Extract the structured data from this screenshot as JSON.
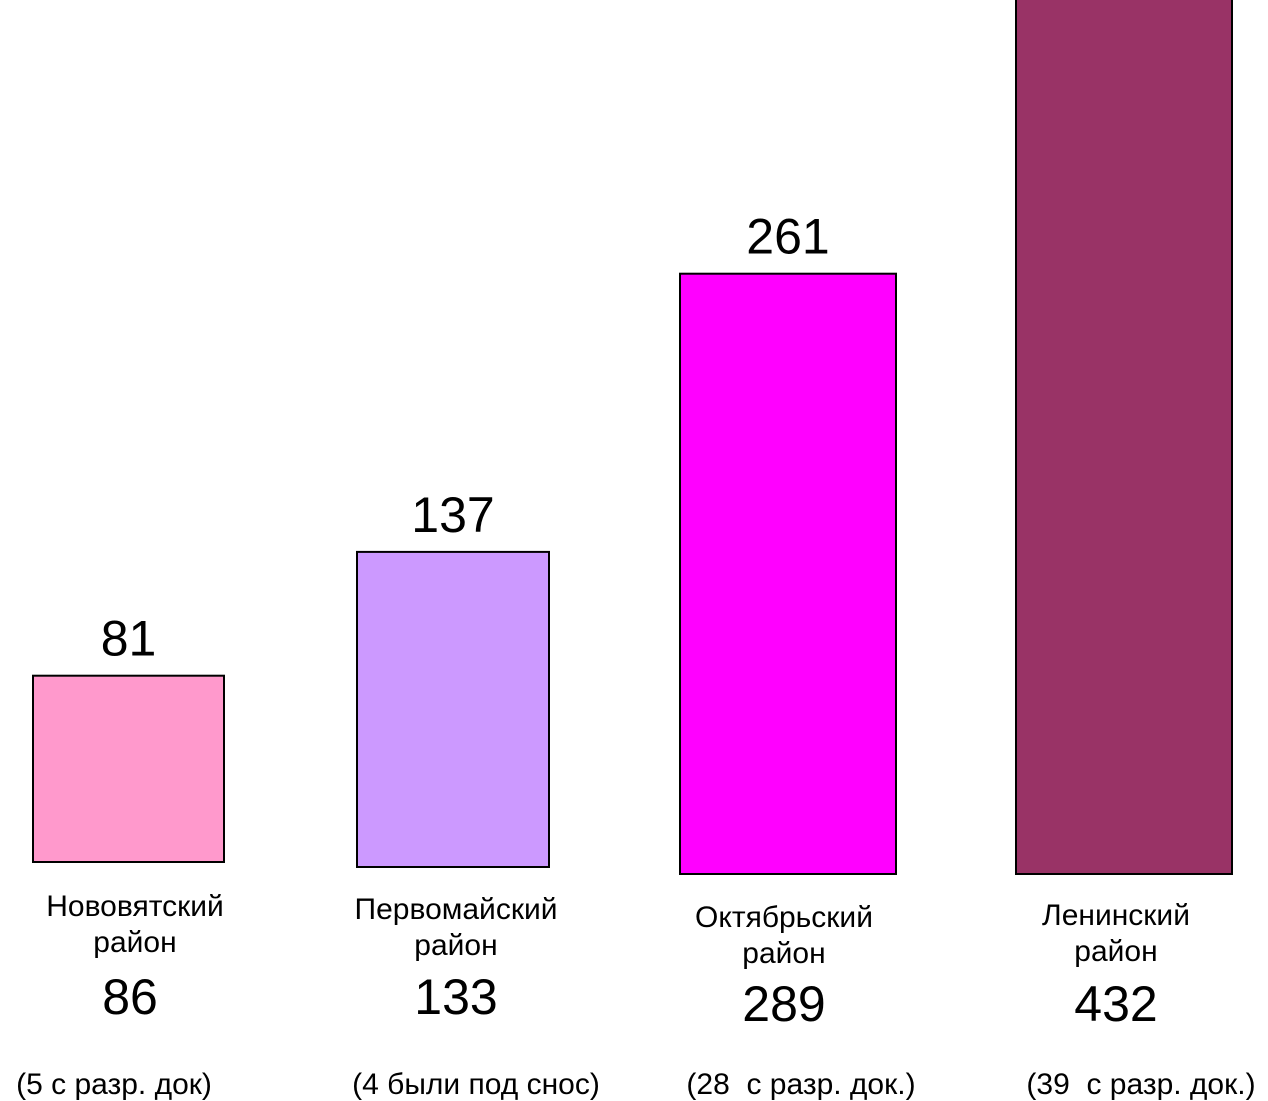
{
  "chart_data": {
    "type": "bar",
    "categories": [
      "Нововятский район",
      "Первомайский район",
      "Октябрьский район",
      "Ленинский район"
    ],
    "category_lines": [
      [
        "Нововятский",
        "район"
      ],
      [
        "Первомайский",
        "район"
      ],
      [
        "Октябрьский",
        "район"
      ],
      [
        "Ленинский",
        "район"
      ]
    ],
    "values": [
      81,
      137,
      261,
      392
    ],
    "secondary_values": [
      86,
      133,
      289,
      432
    ],
    "notes": [
      "(5 с разр. док)",
      "(4 были под снос)",
      "(28  с разр. док.)",
      "(39  с разр. док.)"
    ],
    "colors": [
      "#FF99CC",
      "#CC99FF",
      "#FF00FF",
      "#993366"
    ],
    "title": "",
    "xlabel": "",
    "ylabel": "",
    "ylim": [
      0,
      400
    ],
    "grid": false,
    "legend": "none"
  }
}
